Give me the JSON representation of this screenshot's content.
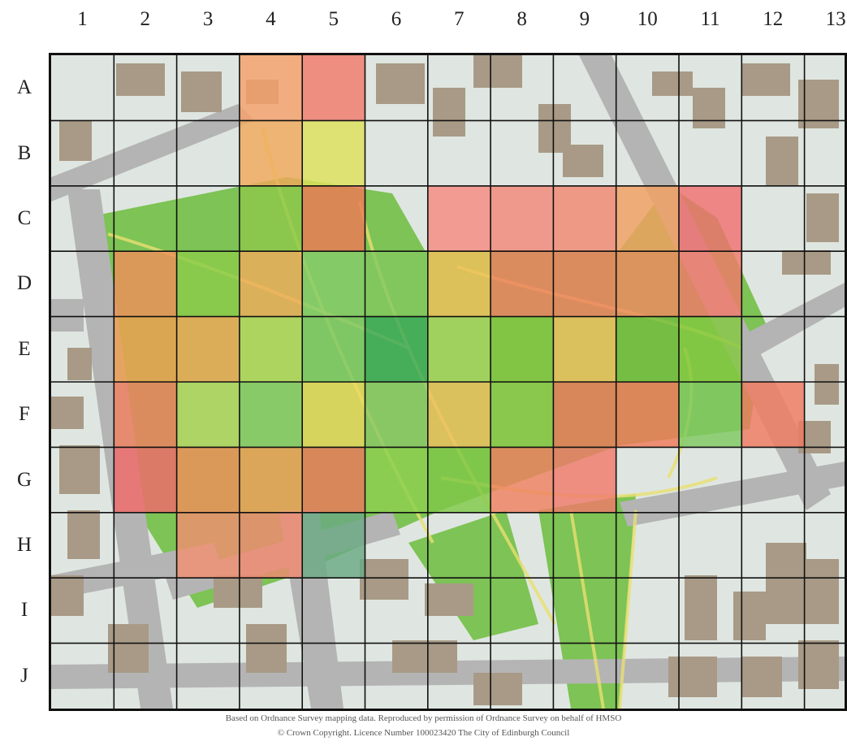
{
  "grid": {
    "columns": [
      "1",
      "2",
      "3",
      "4",
      "5",
      "6",
      "7",
      "8",
      "9",
      "10",
      "11",
      "12",
      "13"
    ],
    "rows": [
      "A",
      "B",
      "C",
      "D",
      "E",
      "F",
      "G",
      "H",
      "I",
      "J"
    ]
  },
  "cells": [
    {
      "cell": "A4",
      "color": "#f5a06a"
    },
    {
      "cell": "A5",
      "color": "#f07a6a"
    },
    {
      "cell": "B4",
      "color": "#f0a85a"
    },
    {
      "cell": "B5",
      "color": "#dde05a"
    },
    {
      "cell": "C4",
      "color": "#8ec84a"
    },
    {
      "cell": "C5",
      "color": "#ee7a55"
    },
    {
      "cell": "C7",
      "color": "#f58a80"
    },
    {
      "cell": "C8",
      "color": "#f28878"
    },
    {
      "cell": "C9",
      "color": "#f08870"
    },
    {
      "cell": "C10",
      "color": "#f2a060"
    },
    {
      "cell": "C11",
      "color": "#f07070"
    },
    {
      "cell": "D2",
      "color": "#f0905a"
    },
    {
      "cell": "D3",
      "color": "#8ccc4a"
    },
    {
      "cell": "D4",
      "color": "#f0ac5c"
    },
    {
      "cell": "D5",
      "color": "#86cc6a"
    },
    {
      "cell": "D6",
      "color": "#84c860"
    },
    {
      "cell": "D7",
      "color": "#f2c05a"
    },
    {
      "cell": "D8",
      "color": "#f08060"
    },
    {
      "cell": "D9",
      "color": "#f08060"
    },
    {
      "cell": "D10",
      "color": "#f08a60"
    },
    {
      "cell": "D11",
      "color": "#f07a6a"
    },
    {
      "cell": "E2",
      "color": "#f0a050"
    },
    {
      "cell": "E3",
      "color": "#f2a85a"
    },
    {
      "cell": "E4",
      "color": "#b8d860"
    },
    {
      "cell": "E5",
      "color": "#80c868"
    },
    {
      "cell": "E6",
      "color": "#3aa85a"
    },
    {
      "cell": "E7",
      "color": "#a8d460"
    },
    {
      "cell": "E8",
      "color": "#84c440"
    },
    {
      "cell": "E9",
      "color": "#f0c060"
    },
    {
      "cell": "E10",
      "color": "#74bc40"
    },
    {
      "cell": "E11",
      "color": "#84c840"
    },
    {
      "cell": "F2",
      "color": "#f08060"
    },
    {
      "cell": "F3",
      "color": "#b8d868"
    },
    {
      "cell": "F4",
      "color": "#8ccc6c"
    },
    {
      "cell": "F5",
      "color": "#ecd860"
    },
    {
      "cell": "F6",
      "color": "#8cc868"
    },
    {
      "cell": "F7",
      "color": "#f0c060"
    },
    {
      "cell": "F8",
      "color": "#8cc84c"
    },
    {
      "cell": "F9",
      "color": "#ec7a5a"
    },
    {
      "cell": "F10",
      "color": "#f07a5a"
    },
    {
      "cell": "F11",
      "color": "#80c860"
    },
    {
      "cell": "F12",
      "color": "#f07a60"
    },
    {
      "cell": "G2",
      "color": "#f06a6a"
    },
    {
      "cell": "G3",
      "color": "#f0905a"
    },
    {
      "cell": "G4",
      "color": "#f0a05a"
    },
    {
      "cell": "G5",
      "color": "#ec7a5c"
    },
    {
      "cell": "G6",
      "color": "#8ed050"
    },
    {
      "cell": "G7",
      "color": "#80c848"
    },
    {
      "cell": "G8",
      "color": "#f08060"
    },
    {
      "cell": "G9",
      "color": "#f07a6a"
    },
    {
      "cell": "H3",
      "color": "#f09070"
    },
    {
      "cell": "H4",
      "color": "#f08a70"
    },
    {
      "cell": "H5",
      "color": "#6aaa84"
    }
  ],
  "credit": {
    "line1": "Based on Ordnance Survey mapping data.  Reproduced by permission of Ordnance Survey on behalf of HMSO",
    "line2": "© Crown Copyright. Licence Number 100023420 The City of Edinburgh Council"
  },
  "colors": {
    "background": "#dfe6e1",
    "building": "#a89a86",
    "road": "#b4b4b4",
    "grass": "#6cbc3c",
    "path": "#e8e070",
    "grid_line": "#111111"
  }
}
